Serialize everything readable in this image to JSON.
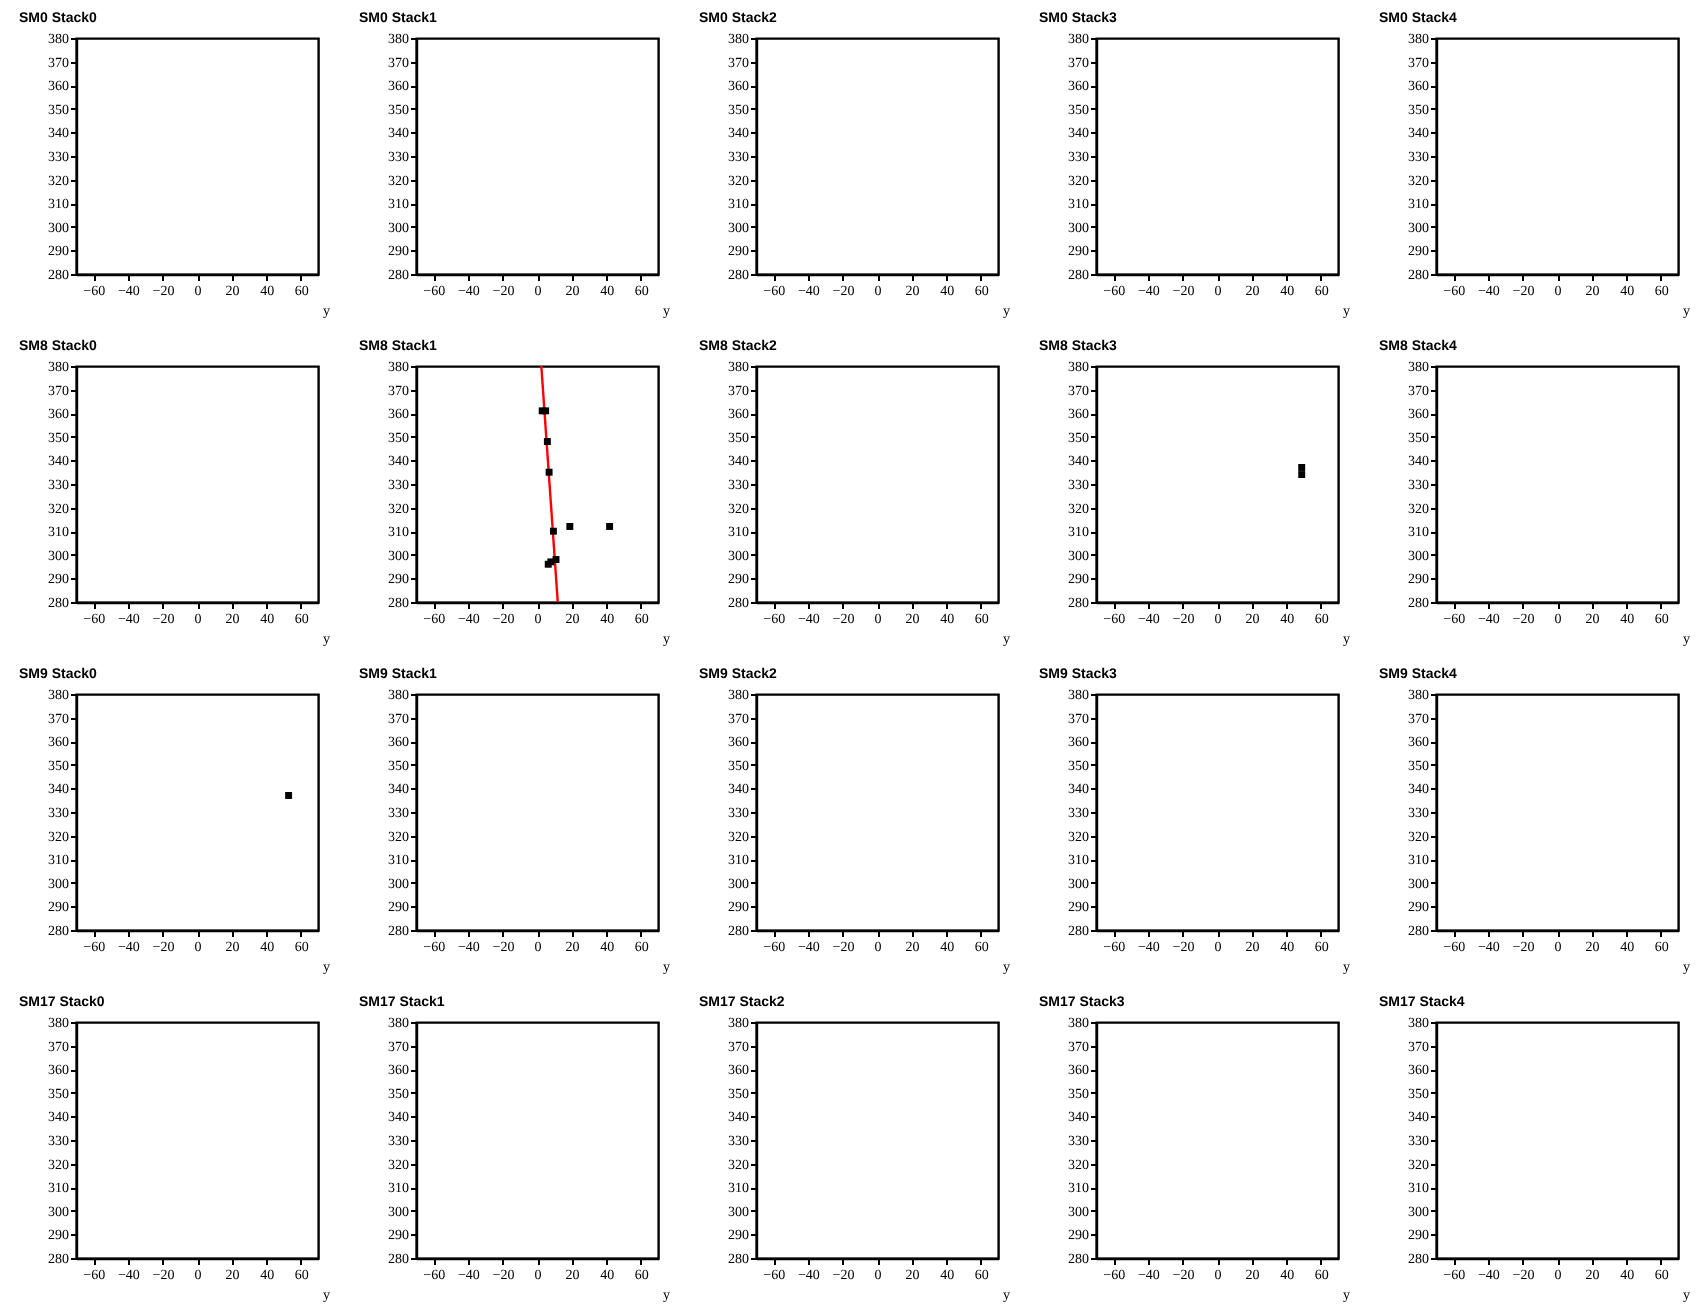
{
  "chart_data": [
    {
      "type": "scatter",
      "title": "SM0 Stack0",
      "xlabel": "y",
      "xlim": [
        -70,
        70
      ],
      "xticks": [
        -60,
        -40,
        -20,
        0,
        20,
        40,
        60
      ],
      "ylim": [
        280,
        380
      ],
      "yticks": [
        280,
        290,
        300,
        310,
        320,
        330,
        340,
        350,
        360,
        370,
        380
      ]
    },
    {
      "type": "scatter",
      "title": "SM0 Stack1",
      "xlabel": "y",
      "xlim": [
        -70,
        70
      ],
      "xticks": [
        -60,
        -40,
        -20,
        0,
        20,
        40,
        60
      ],
      "ylim": [
        280,
        380
      ],
      "yticks": [
        280,
        290,
        300,
        310,
        320,
        330,
        340,
        350,
        360,
        370,
        380
      ]
    },
    {
      "type": "scatter",
      "title": "SM0 Stack2",
      "xlabel": "y",
      "xlim": [
        -70,
        70
      ],
      "xticks": [
        -60,
        -40,
        -20,
        0,
        20,
        40,
        60
      ],
      "ylim": [
        280,
        380
      ],
      "yticks": [
        280,
        290,
        300,
        310,
        320,
        330,
        340,
        350,
        360,
        370,
        380
      ]
    },
    {
      "type": "scatter",
      "title": "SM0 Stack3",
      "xlabel": "y",
      "xlim": [
        -70,
        70
      ],
      "xticks": [
        -60,
        -40,
        -20,
        0,
        20,
        40,
        60
      ],
      "ylim": [
        280,
        380
      ],
      "yticks": [
        280,
        290,
        300,
        310,
        320,
        330,
        340,
        350,
        360,
        370,
        380
      ]
    },
    {
      "type": "scatter",
      "title": "SM0 Stack4",
      "xlabel": "y",
      "xlim": [
        -70,
        70
      ],
      "xticks": [
        -60,
        -40,
        -20,
        0,
        20,
        40,
        60
      ],
      "ylim": [
        280,
        380
      ],
      "yticks": [
        280,
        290,
        300,
        310,
        320,
        330,
        340,
        350,
        360,
        370,
        380
      ]
    },
    {
      "type": "scatter",
      "title": "SM8 Stack0",
      "xlabel": "y",
      "xlim": [
        -70,
        70
      ],
      "xticks": [
        -60,
        -40,
        -20,
        0,
        20,
        40,
        60
      ],
      "ylim": [
        280,
        380
      ],
      "yticks": [
        280,
        290,
        300,
        310,
        320,
        330,
        340,
        350,
        360,
        370,
        380
      ]
    },
    {
      "type": "scatter",
      "title": "SM8 Stack1",
      "xlabel": "y",
      "xlim": [
        -70,
        70
      ],
      "xticks": [
        -60,
        -40,
        -20,
        0,
        20,
        40,
        60
      ],
      "ylim": [
        280,
        380
      ],
      "yticks": [
        280,
        290,
        300,
        310,
        320,
        330,
        340,
        350,
        360,
        370,
        380
      ],
      "marker": "square",
      "series": [
        {
          "type": "line",
          "color": "#ff0000",
          "marker": "none",
          "x": [
            2.5,
            12
          ],
          "values": [
            380,
            280
          ]
        },
        {
          "color": "#000000",
          "x": [
            3,
            5,
            6,
            7,
            9.5,
            19,
            42,
            8,
            11,
            6.5
          ],
          "values": [
            361,
            361,
            348,
            335,
            310,
            312,
            312,
            297,
            298,
            296
          ]
        }
      ]
    },
    {
      "type": "scatter",
      "title": "SM8 Stack2",
      "xlabel": "y",
      "xlim": [
        -70,
        70
      ],
      "xticks": [
        -60,
        -40,
        -20,
        0,
        20,
        40,
        60
      ],
      "ylim": [
        280,
        380
      ],
      "yticks": [
        280,
        290,
        300,
        310,
        320,
        330,
        340,
        350,
        360,
        370,
        380
      ]
    },
    {
      "type": "scatter",
      "title": "SM8 Stack3",
      "xlabel": "y",
      "xlim": [
        -70,
        70
      ],
      "xticks": [
        -60,
        -40,
        -20,
        0,
        20,
        40,
        60
      ],
      "ylim": [
        280,
        380
      ],
      "yticks": [
        280,
        290,
        300,
        310,
        320,
        330,
        340,
        350,
        360,
        370,
        380
      ],
      "marker": "square",
      "series": [
        {
          "color": "#000000",
          "x": [
            49,
            49
          ],
          "values": [
            337,
            334
          ]
        }
      ]
    },
    {
      "type": "scatter",
      "title": "SM8 Stack4",
      "xlabel": "y",
      "xlim": [
        -70,
        70
      ],
      "xticks": [
        -60,
        -40,
        -20,
        0,
        20,
        40,
        60
      ],
      "ylim": [
        280,
        380
      ],
      "yticks": [
        280,
        290,
        300,
        310,
        320,
        330,
        340,
        350,
        360,
        370,
        380
      ]
    },
    {
      "type": "scatter",
      "title": "SM9 Stack0",
      "xlabel": "y",
      "xlim": [
        -70,
        70
      ],
      "xticks": [
        -60,
        -40,
        -20,
        0,
        20,
        40,
        60
      ],
      "ylim": [
        280,
        380
      ],
      "yticks": [
        280,
        290,
        300,
        310,
        320,
        330,
        340,
        350,
        360,
        370,
        380
      ],
      "marker": "square",
      "series": [
        {
          "color": "#000000",
          "x": [
            53
          ],
          "values": [
            337
          ]
        }
      ]
    },
    {
      "type": "scatter",
      "title": "SM9 Stack1",
      "xlabel": "y",
      "xlim": [
        -70,
        70
      ],
      "xticks": [
        -60,
        -40,
        -20,
        0,
        20,
        40,
        60
      ],
      "ylim": [
        280,
        380
      ],
      "yticks": [
        280,
        290,
        300,
        310,
        320,
        330,
        340,
        350,
        360,
        370,
        380
      ]
    },
    {
      "type": "scatter",
      "title": "SM9 Stack2",
      "xlabel": "y",
      "xlim": [
        -70,
        70
      ],
      "xticks": [
        -60,
        -40,
        -20,
        0,
        20,
        40,
        60
      ],
      "ylim": [
        280,
        380
      ],
      "yticks": [
        280,
        290,
        300,
        310,
        320,
        330,
        340,
        350,
        360,
        370,
        380
      ]
    },
    {
      "type": "scatter",
      "title": "SM9 Stack3",
      "xlabel": "y",
      "xlim": [
        -70,
        70
      ],
      "xticks": [
        -60,
        -40,
        -20,
        0,
        20,
        40,
        60
      ],
      "ylim": [
        280,
        380
      ],
      "yticks": [
        280,
        290,
        300,
        310,
        320,
        330,
        340,
        350,
        360,
        370,
        380
      ]
    },
    {
      "type": "scatter",
      "title": "SM9 Stack4",
      "xlabel": "y",
      "xlim": [
        -70,
        70
      ],
      "xticks": [
        -60,
        -40,
        -20,
        0,
        20,
        40,
        60
      ],
      "ylim": [
        280,
        380
      ],
      "yticks": [
        280,
        290,
        300,
        310,
        320,
        330,
        340,
        350,
        360,
        370,
        380
      ]
    },
    {
      "type": "scatter",
      "title": "SM17 Stack0",
      "xlabel": "y",
      "xlim": [
        -70,
        70
      ],
      "xticks": [
        -60,
        -40,
        -20,
        0,
        20,
        40,
        60
      ],
      "ylim": [
        280,
        380
      ],
      "yticks": [
        280,
        290,
        300,
        310,
        320,
        330,
        340,
        350,
        360,
        370,
        380
      ]
    },
    {
      "type": "scatter",
      "title": "SM17 Stack1",
      "xlabel": "y",
      "xlim": [
        -70,
        70
      ],
      "xticks": [
        -60,
        -40,
        -20,
        0,
        20,
        40,
        60
      ],
      "ylim": [
        280,
        380
      ],
      "yticks": [
        280,
        290,
        300,
        310,
        320,
        330,
        340,
        350,
        360,
        370,
        380
      ]
    },
    {
      "type": "scatter",
      "title": "SM17 Stack2",
      "xlabel": "y",
      "xlim": [
        -70,
        70
      ],
      "xticks": [
        -60,
        -40,
        -20,
        0,
        20,
        40,
        60
      ],
      "ylim": [
        280,
        380
      ],
      "yticks": [
        280,
        290,
        300,
        310,
        320,
        330,
        340,
        350,
        360,
        370,
        380
      ]
    },
    {
      "type": "scatter",
      "title": "SM17 Stack3",
      "xlabel": "y",
      "xlim": [
        -70,
        70
      ],
      "xticks": [
        -60,
        -40,
        -20,
        0,
        20,
        40,
        60
      ],
      "ylim": [
        280,
        380
      ],
      "yticks": [
        280,
        290,
        300,
        310,
        320,
        330,
        340,
        350,
        360,
        370,
        380
      ]
    },
    {
      "type": "scatter",
      "title": "SM17 Stack4",
      "xlabel": "y",
      "xlim": [
        -70,
        70
      ],
      "xticks": [
        -60,
        -40,
        -20,
        0,
        20,
        40,
        60
      ],
      "ylim": [
        280,
        380
      ],
      "yticks": [
        280,
        290,
        300,
        310,
        320,
        330,
        340,
        350,
        360,
        370,
        380
      ]
    }
  ]
}
